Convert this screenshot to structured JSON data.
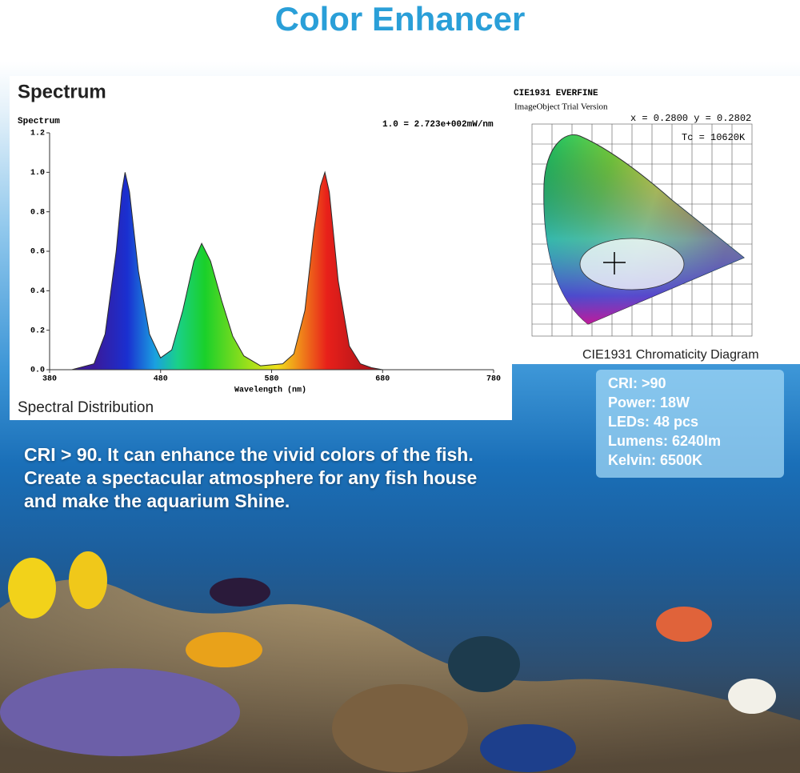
{
  "title": "Color Enhancer",
  "chart_data": {
    "type": "area",
    "title": "Spectrum",
    "y_label": "Spectrum",
    "annotation": "1.0 = 2.723e+002mW/nm",
    "x_label": "Wavelength (nm)",
    "caption": "Spectral Distribution",
    "color": "#2b2b2b",
    "x": [
      380,
      400,
      420,
      430,
      440,
      445,
      448,
      452,
      460,
      470,
      480,
      490,
      500,
      510,
      517,
      525,
      535,
      545,
      555,
      570,
      590,
      600,
      610,
      618,
      624,
      628,
      632,
      640,
      650,
      660,
      670,
      680,
      780
    ],
    "values": [
      0,
      0,
      0.03,
      0.18,
      0.6,
      0.9,
      1.0,
      0.9,
      0.5,
      0.18,
      0.06,
      0.1,
      0.3,
      0.55,
      0.64,
      0.55,
      0.35,
      0.17,
      0.07,
      0.02,
      0.03,
      0.08,
      0.3,
      0.7,
      0.93,
      1.0,
      0.9,
      0.45,
      0.12,
      0.03,
      0.01,
      0,
      0
    ],
    "xlim": [
      380,
      780
    ],
    "xticks": [
      380,
      480,
      580,
      680,
      780
    ],
    "ylim": [
      0,
      1.2
    ],
    "yticks": [
      {
        "value": 0,
        "label": "0.0"
      },
      0.2,
      0.4,
      0.6,
      0.8,
      {
        "value": 1,
        "label": "1.0"
      },
      1.2
    ]
  },
  "cie": {
    "title": "CIE1931 EVERFINE",
    "subtitle": "ImageObject Trial Version",
    "coords": "x = 0.2800 y = 0.2802",
    "tc": "Tc = 10620K",
    "caption": "CIE1931 Chromaticity Diagram"
  },
  "specs": [
    "CRI: >90",
    "Power: 18W",
    "LEDs: 48 pcs",
    "Lumens: 6240lm",
    "Kelvin: 6500K"
  ],
  "description": [
    "CRI > 90. It can enhance the vivid colors of the fish.",
    "Create a spectacular atmosphere for any fish house",
    "and make the aquarium Shine."
  ]
}
